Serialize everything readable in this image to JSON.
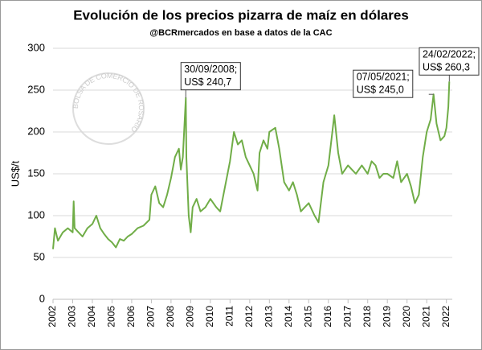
{
  "chart_data": {
    "type": "line",
    "title": "Evolución de los precios pizarra de maíz en dólares",
    "subtitle": "@BCRmercados en base a datos de la CAC",
    "watermark": "BOLSA DE COMERCIO DE ROSARIO",
    "y_label": "US$/t",
    "x": [
      2002.0,
      2002.1,
      2002.25,
      2002.5,
      2002.75,
      2003.0,
      2003.05,
      2003.1,
      2003.3,
      2003.5,
      2003.75,
      2004.0,
      2004.2,
      2004.4,
      2004.6,
      2004.8,
      2005.0,
      2005.2,
      2005.4,
      2005.6,
      2005.8,
      2006.0,
      2006.3,
      2006.6,
      2006.9,
      2007.0,
      2007.2,
      2007.4,
      2007.6,
      2007.8,
      2008.0,
      2008.2,
      2008.4,
      2008.5,
      2008.6,
      2008.75,
      2008.78,
      2008.9,
      2009.0,
      2009.1,
      2009.3,
      2009.5,
      2009.75,
      2010.0,
      2010.3,
      2010.5,
      2010.75,
      2011.0,
      2011.2,
      2011.4,
      2011.6,
      2011.8,
      2012.0,
      2012.2,
      2012.4,
      2012.5,
      2012.7,
      2012.9,
      2013.0,
      2013.3,
      2013.5,
      2013.75,
      2014.0,
      2014.2,
      2014.4,
      2014.6,
      2014.8,
      2015.0,
      2015.3,
      2015.5,
      2015.75,
      2016.0,
      2016.2,
      2016.3,
      2016.5,
      2016.7,
      2017.0,
      2017.2,
      2017.4,
      2017.7,
      2018.0,
      2018.2,
      2018.4,
      2018.6,
      2018.8,
      2019.0,
      2019.3,
      2019.5,
      2019.7,
      2020.0,
      2020.2,
      2020.4,
      2020.6,
      2020.8,
      2021.0,
      2021.2,
      2021.35,
      2021.5,
      2021.7,
      2021.9,
      2022.0,
      2022.1,
      2022.15
    ],
    "series": [
      {
        "name": "Maíz",
        "color": "#70ad47",
        "values": [
          60,
          85,
          70,
          80,
          85,
          80,
          117,
          85,
          80,
          75,
          85,
          90,
          100,
          85,
          78,
          72,
          68,
          62,
          72,
          70,
          75,
          78,
          85,
          88,
          95,
          125,
          135,
          115,
          110,
          125,
          145,
          170,
          180,
          155,
          170,
          240.7,
          170,
          100,
          80,
          110,
          120,
          105,
          110,
          120,
          110,
          105,
          135,
          165,
          200,
          185,
          190,
          170,
          160,
          150,
          130,
          175,
          190,
          180,
          200,
          205,
          180,
          140,
          130,
          140,
          125,
          105,
          110,
          115,
          100,
          92,
          140,
          160,
          200,
          220,
          175,
          150,
          160,
          155,
          150,
          160,
          150,
          165,
          160,
          145,
          150,
          150,
          145,
          165,
          140,
          150,
          135,
          115,
          125,
          170,
          200,
          215,
          245.0,
          210,
          190,
          195,
          205,
          230,
          260.3
        ]
      }
    ],
    "xlim": [
      2002,
      2022.3
    ],
    "xticks": [
      2002,
      2003,
      2004,
      2005,
      2006,
      2007,
      2008,
      2009,
      2010,
      2011,
      2012,
      2013,
      2014,
      2015,
      2016,
      2017,
      2018,
      2019,
      2020,
      2021,
      2022
    ],
    "ylim": [
      0,
      300
    ],
    "yticks": [
      0,
      50,
      100,
      150,
      200,
      250,
      300
    ],
    "grid": true,
    "annotations": [
      {
        "x": 2008.75,
        "y": 240.7,
        "lines": [
          "30/09/2008;",
          "US$ 240,7"
        ]
      },
      {
        "x": 2021.35,
        "y": 245.0,
        "lines": [
          "07/05/2021;",
          "US$ 245,0"
        ]
      },
      {
        "x": 2022.15,
        "y": 260.3,
        "lines": [
          "24/02/2022;",
          "US$ 260,3"
        ]
      }
    ]
  }
}
